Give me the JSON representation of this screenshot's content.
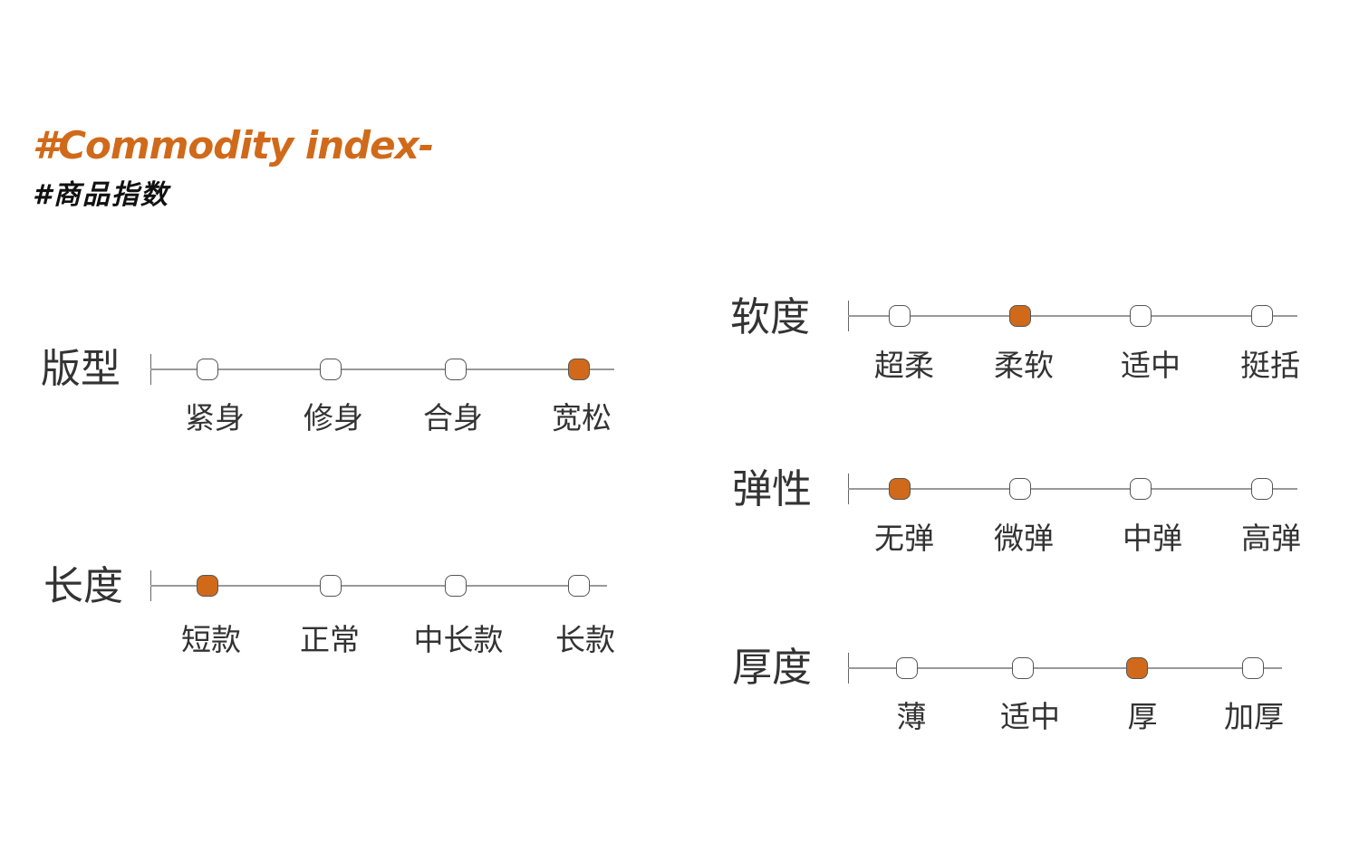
{
  "header": {
    "title_en": "#Commodity index-",
    "title_cn": "#商品指数"
  },
  "accent_color": "#d06a1a",
  "indices": [
    {
      "name": "版型",
      "options": [
        "紧身",
        "修身",
        "合身",
        "宽松"
      ],
      "selected": 3
    },
    {
      "name": "长度",
      "options": [
        "短款",
        "正常",
        "中长款",
        "长款"
      ],
      "selected": 0
    },
    {
      "name": "软度",
      "options": [
        "超柔",
        "柔软",
        "适中",
        "挺括"
      ],
      "selected": 1
    },
    {
      "name": "弹性",
      "options": [
        "无弹",
        "微弹",
        "中弹",
        "高弹"
      ],
      "selected": 0
    },
    {
      "name": "厚度",
      "options": [
        "薄",
        "适中",
        "厚",
        "加厚"
      ],
      "selected": 2
    }
  ]
}
